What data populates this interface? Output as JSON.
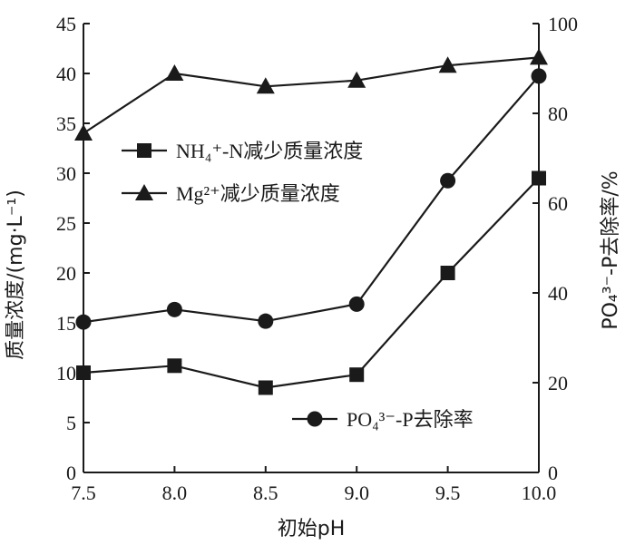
{
  "chart_data": {
    "type": "line",
    "x": [
      7.5,
      8.0,
      8.5,
      9.0,
      9.5,
      10.0
    ],
    "xticks": [
      "7.5",
      "8.0",
      "8.5",
      "9.0",
      "9.5",
      "10.0"
    ],
    "xlabel": "初始pH",
    "xlim": [
      7.5,
      10.0
    ],
    "ylabel_left": "质量浓度/(mg·L⁻¹)",
    "ylim_left": [
      0,
      45
    ],
    "yticks_left": [
      "0",
      "5",
      "10",
      "15",
      "20",
      "25",
      "30",
      "35",
      "40",
      "45"
    ],
    "ylabel_right": "PO₄³⁻-P去除率/%",
    "ylim_right": [
      0,
      100
    ],
    "yticks_right": [
      "0",
      "20",
      "40",
      "60",
      "80",
      "100"
    ],
    "grid": false,
    "series": [
      {
        "name": "NH₄⁺-N减少质量浓度",
        "marker": "square",
        "axis": "left",
        "values": [
          10.0,
          10.7,
          8.5,
          9.8,
          20.0,
          29.5
        ]
      },
      {
        "name": "Mg²⁺减少质量浓度",
        "marker": "triangle",
        "axis": "left",
        "values": [
          34.0,
          40.0,
          38.7,
          39.3,
          40.8,
          41.6
        ]
      },
      {
        "name": "PO₄³⁻-P去除率",
        "marker": "circle",
        "axis": "right",
        "values": [
          33.5,
          36.3,
          33.7,
          37.5,
          65.0,
          88.3
        ]
      }
    ]
  }
}
